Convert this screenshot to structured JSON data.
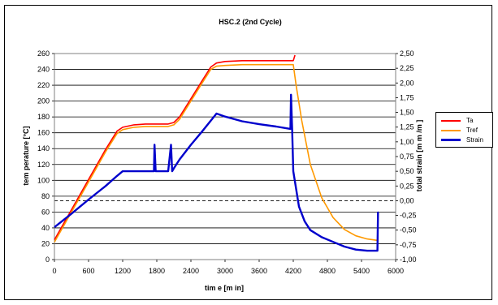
{
  "chart_data": {
    "type": "line",
    "title": "HSC.2 (2nd Cycle)",
    "xlabel": "tim e  [m in]",
    "ylabel": "tem perature  [°C]",
    "y2label": "total strain [m m /m ]",
    "xlim": [
      0,
      6000
    ],
    "ylim": [
      0,
      260
    ],
    "y2lim": [
      -1.0,
      2.5
    ],
    "x_ticks": [
      "0",
      "600",
      "1200",
      "1800",
      "2400",
      "3000",
      "3600",
      "4200",
      "4800",
      "5400",
      "6000"
    ],
    "y_ticks": [
      "0",
      "20",
      "40",
      "60",
      "80",
      "100",
      "120",
      "140",
      "160",
      "180",
      "200",
      "220",
      "240",
      "260"
    ],
    "y2_ticks": [
      "-1,00",
      "-0,75",
      "-0,50",
      "-0,25",
      "0,00",
      "0,25",
      "0,50",
      "0,75",
      "1,00",
      "1,25",
      "1,50",
      "1,75",
      "2,00",
      "2,25",
      "2,50"
    ],
    "grid": true,
    "legend_position": "right",
    "series": [
      {
        "name": "Ta",
        "color": "#ff0000",
        "axis": "left",
        "x": [
          0,
          300,
          600,
          900,
          1100,
          1200,
          1400,
          1600,
          1800,
          2000,
          2100,
          2200,
          2400,
          2600,
          2750,
          2850,
          3000,
          3300,
          3600,
          3900,
          4200,
          4230
        ],
        "y": [
          25,
          63,
          101,
          139,
          162,
          167,
          170,
          171,
          171,
          171,
          173,
          180,
          203,
          226,
          243,
          248,
          250,
          251,
          251,
          251,
          251,
          258
        ]
      },
      {
        "name": "Tref",
        "color": "#ff9900",
        "axis": "left",
        "x": [
          0,
          300,
          600,
          900,
          1100,
          1200,
          1400,
          1600,
          1800,
          2000,
          2100,
          2200,
          2400,
          2600,
          2750,
          2850,
          3000,
          3300,
          3600,
          3900,
          4200,
          4250,
          4350,
          4500,
          4700,
          4900,
          5100,
          5300,
          5500,
          5700
        ],
        "y": [
          22,
          60,
          98,
          136,
          159,
          164,
          167,
          168,
          168,
          168,
          170,
          177,
          200,
          223,
          240,
          244,
          245,
          246,
          246,
          246,
          246,
          220,
          175,
          120,
          78,
          53,
          38,
          30,
          26,
          24
        ]
      },
      {
        "name": "Strain",
        "color": "#0000cc",
        "axis": "right",
        "x": [
          0,
          300,
          600,
          900,
          1100,
          1200,
          1400,
          1600,
          1750,
          1760,
          1780,
          1800,
          2000,
          2050,
          2070,
          2100,
          2200,
          2400,
          2600,
          2800,
          2850,
          3000,
          3300,
          3600,
          3900,
          4150,
          4160,
          4180,
          4200,
          4300,
          4400,
          4500,
          4700,
          4900,
          5100,
          5300,
          5500,
          5680,
          5690,
          5700
        ],
        "y": [
          -0.45,
          -0.22,
          0.02,
          0.25,
          0.42,
          0.5,
          0.5,
          0.5,
          0.5,
          0.95,
          0.5,
          0.5,
          0.5,
          0.95,
          0.5,
          0.55,
          0.7,
          0.95,
          1.18,
          1.42,
          1.48,
          1.43,
          1.35,
          1.3,
          1.26,
          1.22,
          1.8,
          1.22,
          0.5,
          -0.1,
          -0.35,
          -0.5,
          -0.62,
          -0.7,
          -0.78,
          -0.83,
          -0.85,
          -0.85,
          -0.2,
          -0.2
        ]
      }
    ]
  }
}
